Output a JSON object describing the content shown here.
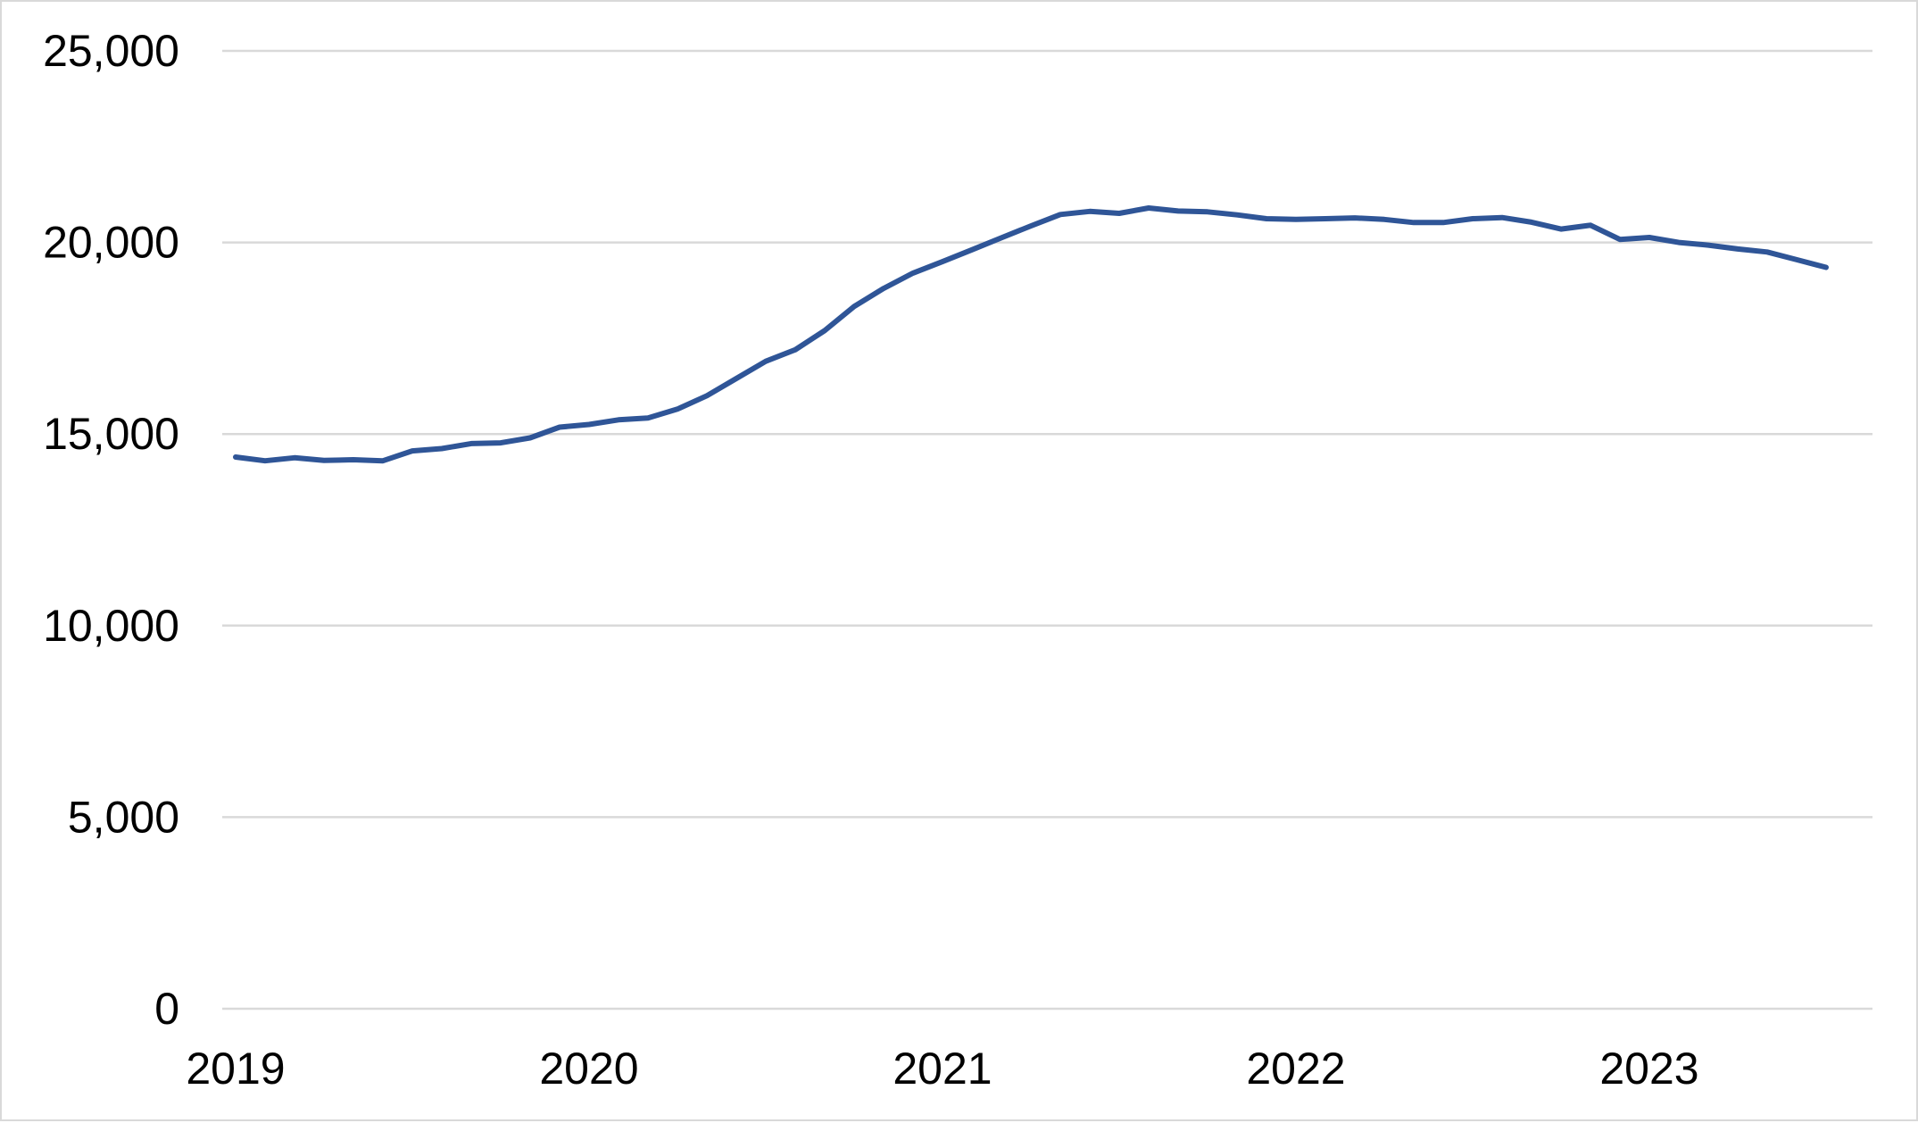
{
  "chart_data": {
    "type": "line",
    "title": "",
    "xlabel": "",
    "ylabel": "",
    "x_tick_labels": [
      "2019",
      "2020",
      "2021",
      "2022",
      "2023"
    ],
    "y_tick_labels": [
      "0",
      "5,000",
      "10,000",
      "15,000",
      "20,000",
      "25,000"
    ],
    "y_ticks": [
      0,
      5000,
      10000,
      15000,
      20000,
      25000
    ],
    "ylim": [
      0,
      25000
    ],
    "xlim": [
      "2019-01",
      "2023-07"
    ],
    "grid": "horizontal",
    "legend": "none",
    "colors": {
      "series": "#2f5597",
      "grid": "#d9d9d9",
      "border": "#d9d9d9"
    },
    "series": [
      {
        "x": [
          "2019-01",
          "2019-02",
          "2019-03",
          "2019-04",
          "2019-05",
          "2019-06",
          "2019-07",
          "2019-08",
          "2019-09",
          "2019-10",
          "2019-11",
          "2019-12",
          "2020-01",
          "2020-02",
          "2020-03",
          "2020-04",
          "2020-05",
          "2020-06",
          "2020-07",
          "2020-08",
          "2020-09",
          "2020-10",
          "2020-11",
          "2020-12",
          "2021-01",
          "2021-02",
          "2021-03",
          "2021-04",
          "2021-05",
          "2021-06",
          "2021-07",
          "2021-08",
          "2021-09",
          "2021-10",
          "2021-11",
          "2021-12",
          "2022-01",
          "2022-02",
          "2022-03",
          "2022-04",
          "2022-05",
          "2022-06",
          "2022-07",
          "2022-08",
          "2022-09",
          "2022-10",
          "2022-11",
          "2022-12",
          "2023-01",
          "2023-02",
          "2023-03",
          "2023-04",
          "2023-05",
          "2023-06",
          "2023-07"
        ],
        "values": [
          14400,
          14300,
          14380,
          14310,
          14330,
          14300,
          14560,
          14620,
          14750,
          14770,
          14900,
          15180,
          15250,
          15370,
          15420,
          15650,
          16000,
          16450,
          16900,
          17200,
          17700,
          18330,
          18800,
          19200,
          19500,
          19810,
          20120,
          20430,
          20730,
          20810,
          20760,
          20900,
          20820,
          20800,
          20720,
          20620,
          20600,
          20620,
          20640,
          20600,
          20520,
          20520,
          20620,
          20650,
          20530,
          20350,
          20450,
          20080,
          20130,
          20000,
          19930,
          19830,
          19750,
          19550,
          19350
        ]
      }
    ]
  }
}
